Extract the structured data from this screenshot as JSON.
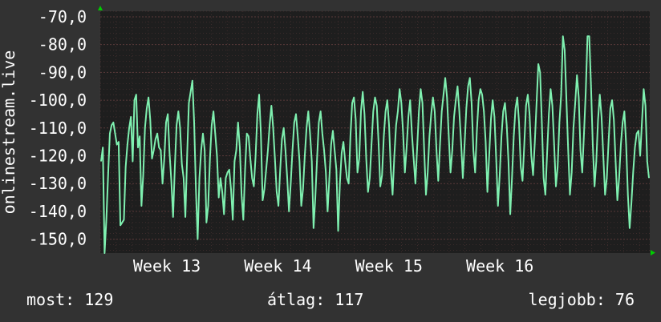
{
  "colors": {
    "background": "#323232",
    "plot_background": "#1e1e1e",
    "grid": "#5a3a3a",
    "line": "#7ff0b0",
    "axis_arrow": "#00cc00",
    "text": "#ffffff"
  },
  "legend": {
    "current_label": "most:",
    "current_value": "129",
    "average_label": "átlag:",
    "average_value": "117",
    "max_label": "legjobb:",
    "max_value": "76"
  },
  "chart_data": {
    "type": "line",
    "title": "",
    "ylabel": "onlinestream.live",
    "xlabel": "",
    "ylim": [
      -155,
      -68
    ],
    "yticks": [
      -70,
      -80,
      -90,
      -100,
      -110,
      -120,
      -130,
      -140,
      -150
    ],
    "ytick_labels": [
      "-70,0",
      "-80,0",
      "-90,0",
      "-100,0",
      "-110,0",
      "-120,0",
      "-130,0",
      "-140,0",
      "-150,0"
    ],
    "xlim": [
      12.0,
      16.95
    ],
    "xticks": [
      12.6,
      13.6,
      14.6,
      15.6
    ],
    "xtick_labels": [
      "Week 13",
      "Week 14",
      "Week 15",
      "Week 16"
    ],
    "grid": true,
    "series": [
      {
        "values": [
          -122,
          -117,
          -155,
          -143,
          -127,
          -112,
          -109,
          -108,
          -112,
          -116,
          -115,
          -145,
          -144,
          -143,
          -124,
          -116,
          -110,
          -106,
          -122,
          -100,
          -98,
          -117,
          -113,
          -138,
          -127,
          -110,
          -103,
          -99,
          -107,
          -121,
          -118,
          -114,
          -112,
          -117,
          -118,
          -130,
          -121,
          -108,
          -105,
          -119,
          -129,
          -142,
          -124,
          -109,
          -104,
          -110,
          -123,
          -128,
          -142,
          -120,
          -101,
          -97,
          -93,
          -108,
          -132,
          -150,
          -128,
          -118,
          -112,
          -118,
          -144,
          -138,
          -121,
          -109,
          -104,
          -112,
          -120,
          -135,
          -128,
          -133,
          -141,
          -128,
          -126,
          -125,
          -132,
          -143,
          -122,
          -118,
          -108,
          -117,
          -134,
          -143,
          -125,
          -112,
          -113,
          -121,
          -128,
          -131,
          -120,
          -105,
          -98,
          -112,
          -136,
          -132,
          -125,
          -118,
          -109,
          -102,
          -110,
          -121,
          -133,
          -138,
          -125,
          -114,
          -110,
          -118,
          -128,
          -140,
          -130,
          -118,
          -108,
          -105,
          -113,
          -122,
          -138,
          -132,
          -120,
          -110,
          -104,
          -112,
          -122,
          -146,
          -135,
          -121,
          -108,
          -104,
          -112,
          -118,
          -126,
          -140,
          -128,
          -116,
          -111,
          -118,
          -125,
          -147,
          -130,
          -119,
          -115,
          -122,
          -128,
          -130,
          -113,
          -101,
          -99,
          -107,
          -126,
          -121,
          -104,
          -97,
          -105,
          -121,
          -133,
          -128,
          -116,
          -104,
          -99,
          -102,
          -115,
          -131,
          -127,
          -113,
          -104,
          -100,
          -109,
          -125,
          -134,
          -120,
          -109,
          -104,
          -96,
          -101,
          -112,
          -126,
          -117,
          -106,
          -100,
          -112,
          -121,
          -130,
          -117,
          -104,
          -96,
          -101,
          -118,
          -134,
          -126,
          -113,
          -105,
          -99,
          -104,
          -118,
          -129,
          -116,
          -104,
          -98,
          -92,
          -99,
          -113,
          -126,
          -118,
          -106,
          -100,
          -95,
          -104,
          -115,
          -128,
          -116,
          -103,
          -95,
          -92,
          -101,
          -118,
          -126,
          -111,
          -100,
          -96,
          -98,
          -104,
          -115,
          -133,
          -120,
          -107,
          -100,
          -106,
          -121,
          -138,
          -127,
          -113,
          -104,
          -101,
          -109,
          -122,
          -141,
          -128,
          -113,
          -103,
          -99,
          -108,
          -124,
          -129,
          -116,
          -102,
          -98,
          -105,
          -120,
          -127,
          -115,
          -101,
          -87,
          -90,
          -108,
          -128,
          -134,
          -119,
          -105,
          -96,
          -102,
          -116,
          -131,
          -124,
          -108,
          -98,
          -77,
          -82,
          -100,
          -118,
          -134,
          -126,
          -110,
          -101,
          -91,
          -99,
          -118,
          -126,
          -112,
          -97,
          -77,
          -77,
          -95,
          -116,
          -131,
          -122,
          -107,
          -98,
          -106,
          -120,
          -134,
          -128,
          -115,
          -103,
          -100,
          -107,
          -122,
          -136,
          -128,
          -116,
          -108,
          -104,
          -116,
          -134,
          -146,
          -137,
          -126,
          -117,
          -112,
          -111,
          -120,
          -108,
          -96,
          -102,
          -122,
          -128
        ]
      }
    ]
  }
}
